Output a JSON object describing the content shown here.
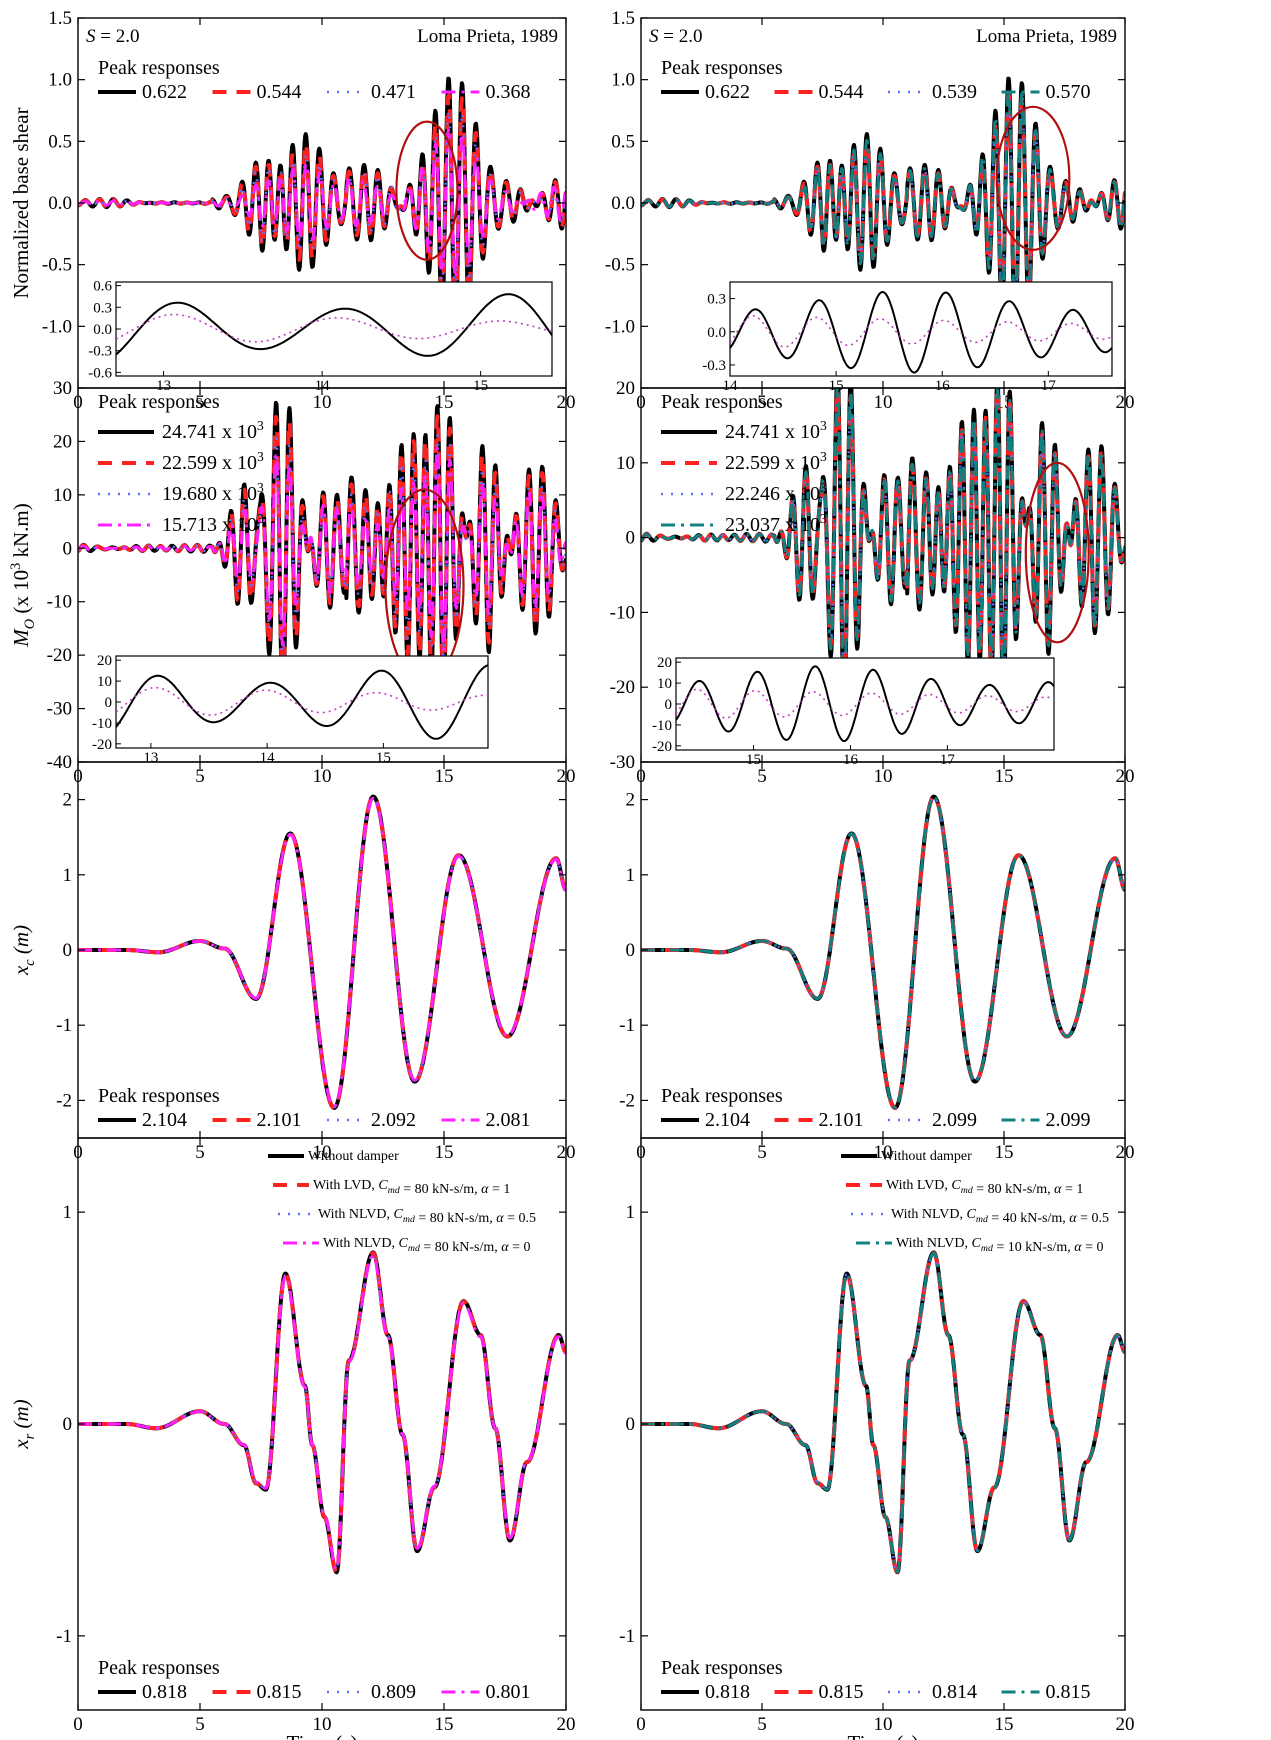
{
  "figure": {
    "xlabel": "Time (s)"
  },
  "styles": {
    "colors": [
      "#000000",
      "#ff2020",
      "#6070ff",
      "#ff20ff",
      "#108080"
    ],
    "dash": [
      "",
      "14,10",
      "2,8",
      "14,6,3,6",
      "14,6,3,6"
    ],
    "width": [
      4,
      4,
      2.5,
      3,
      3
    ]
  },
  "chart_data": [
    {
      "id": "shear-left",
      "type": "line",
      "xlabel": "",
      "ylabel": "Normalized base shear",
      "xlim": [
        0,
        20
      ],
      "ylim": [
        -1.5,
        1.5
      ],
      "xticks": [
        0,
        5,
        10,
        15,
        20
      ],
      "yticks": [
        -1.0,
        -0.5,
        0.0,
        0.5,
        1.0,
        1.5
      ],
      "ytick_labels": [
        "-1.0",
        "-0.5",
        "0.0",
        "0.5",
        "1.0",
        "1.5"
      ],
      "annotations": {
        "left": "S = 2.0",
        "right": "Loma Prieta, 1989"
      },
      "legend": {
        "title": "Peak responses",
        "layout": "row",
        "labels": [
          "0.622",
          "0.544",
          "0.471",
          "0.368"
        ],
        "series_styles": [
          0,
          1,
          2,
          3
        ]
      },
      "peaks": [
        0.622,
        0.544,
        0.471,
        0.368
      ],
      "ellipse": {
        "cx": 14.3,
        "cy": 0.1,
        "rx": 1.25,
        "ry": 0.56
      },
      "inset": {
        "xlim": [
          12.7,
          15.45
        ],
        "ylim": [
          -0.65,
          0.65
        ],
        "xticks": [
          13,
          14,
          15
        ],
        "yticks": [
          -0.6,
          -0.3,
          0.0,
          0.3,
          0.6
        ],
        "ytick_labels": [
          "-0.6",
          "-0.3",
          "0.0",
          "0.3",
          "0.6"
        ]
      }
    },
    {
      "id": "shear-right",
      "type": "line",
      "xlabel": "",
      "ylabel": "",
      "xlim": [
        0,
        20
      ],
      "ylim": [
        -1.5,
        1.5
      ],
      "xticks": [
        0,
        5,
        10,
        15,
        20
      ],
      "yticks": [
        -1.0,
        -0.5,
        0.0,
        0.5,
        1.0,
        1.5
      ],
      "ytick_labels": [
        "-1.0",
        "-0.5",
        "0.0",
        "0.5",
        "1.0",
        "1.5"
      ],
      "annotations": {
        "left": "S = 2.0",
        "right": "Loma Prieta, 1989"
      },
      "legend": {
        "title": "Peak responses",
        "layout": "row",
        "labels": [
          "0.622",
          "0.544",
          "0.539",
          "0.570"
        ],
        "series_styles": [
          0,
          1,
          2,
          4
        ]
      },
      "peaks": [
        0.622,
        0.544,
        0.539,
        0.57
      ],
      "ellipse": {
        "cx": 16.2,
        "cy": 0.2,
        "rx": 1.5,
        "ry": 0.58
      },
      "inset": {
        "xlim": [
          14.0,
          17.6
        ],
        "ylim": [
          -0.4,
          0.45
        ],
        "xticks": [
          14,
          15,
          16,
          17
        ],
        "yticks": [
          -0.3,
          0.0,
          0.3
        ],
        "ytick_labels": [
          "-0.3",
          "0.0",
          "0.3"
        ]
      }
    },
    {
      "id": "moment-left",
      "type": "line",
      "xlabel": "",
      "ylabel": "M_O (x 10^3 kN.m)",
      "xlim": [
        0,
        20
      ],
      "ylim": [
        -40,
        30
      ],
      "xticks": [
        0,
        5,
        10,
        15,
        20
      ],
      "yticks": [
        -40,
        -30,
        -20,
        -10,
        0,
        10,
        20,
        30
      ],
      "ytick_labels": [
        "-40",
        "-30",
        "-20",
        "-10",
        "0",
        "10",
        "20",
        "30"
      ],
      "legend": {
        "title": "Peak responses",
        "layout": "column",
        "labels": [
          "24.741 x 10^3",
          "22.599 x 10^3",
          "19.680 x 10^3",
          "15.713 x 10^3"
        ],
        "series_styles": [
          0,
          1,
          2,
          3
        ]
      },
      "peaks": [
        24.741,
        22.599,
        19.68,
        15.713
      ],
      "ellipse": {
        "cx": 14.2,
        "cy": -7,
        "rx": 1.6,
        "ry": 18
      },
      "inset": {
        "xlim": [
          12.7,
          15.9
        ],
        "ylim": [
          -22,
          22
        ],
        "xticks": [
          13,
          14,
          15
        ],
        "yticks": [
          -20,
          -10,
          0,
          10,
          20
        ],
        "ytick_labels": [
          "-20",
          "-10",
          "0",
          "10",
          "20"
        ]
      }
    },
    {
      "id": "moment-right",
      "type": "line",
      "xlabel": "",
      "ylabel": "",
      "xlim": [
        0,
        20
      ],
      "ylim": [
        -30,
        20
      ],
      "xticks": [
        0,
        5,
        10,
        15,
        20
      ],
      "yticks": [
        -30,
        -20,
        -10,
        0,
        10,
        20
      ],
      "ytick_labels": [
        "-30",
        "-20",
        "-10",
        "0",
        "10",
        "20"
      ],
      "legend": {
        "title": "Peak responses",
        "layout": "column",
        "labels": [
          "24.741 x 10^3",
          "22.599 x 10^3",
          "22.246 x 10^3",
          "23.037 x 10^3"
        ],
        "series_styles": [
          0,
          1,
          2,
          4
        ]
      },
      "peaks": [
        24.741,
        22.599,
        22.246,
        23.037
      ],
      "ellipse": {
        "cx": 17.2,
        "cy": -2,
        "rx": 1.3,
        "ry": 12
      },
      "inset": {
        "xlim": [
          14.2,
          18.1
        ],
        "ylim": [
          -22,
          22
        ],
        "xticks": [
          15,
          16,
          17
        ],
        "yticks": [
          -20,
          -10,
          0,
          10,
          20
        ],
        "ytick_labels": [
          "-20",
          "-10",
          "0",
          "10",
          "20"
        ]
      }
    },
    {
      "id": "xc-left",
      "type": "line",
      "xlabel": "",
      "ylabel": "x_c (m)",
      "xlim": [
        0,
        20
      ],
      "ylim": [
        -2.5,
        2.5
      ],
      "xticks": [
        0,
        5,
        10,
        15,
        20
      ],
      "yticks": [
        -2,
        -1,
        0,
        1,
        2
      ],
      "ytick_labels": [
        "-2",
        "-1",
        "0",
        "1",
        "2"
      ],
      "legend": {
        "title": "Peak responses",
        "layout": "row",
        "labels": [
          "2.104",
          "2.101",
          "2.092",
          "2.081"
        ],
        "series_styles": [
          0,
          1,
          2,
          3
        ]
      },
      "peaks": [
        2.104,
        2.101,
        2.092,
        2.081
      ]
    },
    {
      "id": "xc-right",
      "type": "line",
      "xlabel": "",
      "ylabel": "",
      "xlim": [
        0,
        20
      ],
      "ylim": [
        -2.5,
        2.5
      ],
      "xticks": [
        0,
        5,
        10,
        15,
        20
      ],
      "yticks": [
        -2,
        -1,
        0,
        1,
        2
      ],
      "ytick_labels": [
        "-2",
        "-1",
        "0",
        "1",
        "2"
      ],
      "legend": {
        "title": "Peak responses",
        "layout": "row",
        "labels": [
          "2.104",
          "2.101",
          "2.099",
          "2.099"
        ],
        "series_styles": [
          0,
          1,
          2,
          4
        ]
      },
      "peaks": [
        2.104,
        2.101,
        2.099,
        2.099
      ]
    },
    {
      "id": "xr-left",
      "type": "line",
      "xlabel": "Time (s)",
      "ylabel": "x_r (m)",
      "xlim": [
        0,
        20
      ],
      "ylim": [
        -1.35,
        1.35
      ],
      "xticks": [
        0,
        5,
        10,
        15,
        20
      ],
      "yticks": [
        -1,
        0,
        1
      ],
      "ytick_labels": [
        "-1",
        "0",
        "1"
      ],
      "legend": {
        "title": "Peak responses",
        "layout": "row",
        "labels": [
          "0.818",
          "0.815",
          "0.809",
          "0.801"
        ],
        "series_styles": [
          0,
          1,
          2,
          3
        ]
      },
      "peaks": [
        0.818,
        0.815,
        0.809,
        0.801
      ],
      "series_legend": {
        "labels": [
          "Without damper",
          "With LVD, C_md = 80 kN-s/m, α = 1",
          "With NLVD, C_md = 80 kN-s/m, α = 0.5",
          "With NLVD, C_md = 80 kN-s/m, α = 0"
        ],
        "series_styles": [
          0,
          1,
          2,
          3
        ]
      }
    },
    {
      "id": "xr-right",
      "type": "line",
      "xlabel": "Time (s)",
      "ylabel": "",
      "xlim": [
        0,
        20
      ],
      "ylim": [
        -1.35,
        1.35
      ],
      "xticks": [
        0,
        5,
        10,
        15,
        20
      ],
      "yticks": [
        -1,
        0,
        1
      ],
      "ytick_labels": [
        "-1",
        "0",
        "1"
      ],
      "legend": {
        "title": "Peak responses",
        "layout": "row",
        "labels": [
          "0.818",
          "0.815",
          "0.814",
          "0.815"
        ],
        "series_styles": [
          0,
          1,
          2,
          4
        ]
      },
      "peaks": [
        0.818,
        0.815,
        0.814,
        0.815
      ],
      "series_legend": {
        "labels": [
          "Without damper",
          "With LVD, C_md = 80 kN-s/m, α = 1",
          "With NLVD, C_md = 40 kN-s/m, α = 0.5",
          "With NLVD, C_md = 10 kN-s/m, α = 0"
        ],
        "series_styles": [
          0,
          1,
          2,
          4
        ]
      }
    }
  ]
}
